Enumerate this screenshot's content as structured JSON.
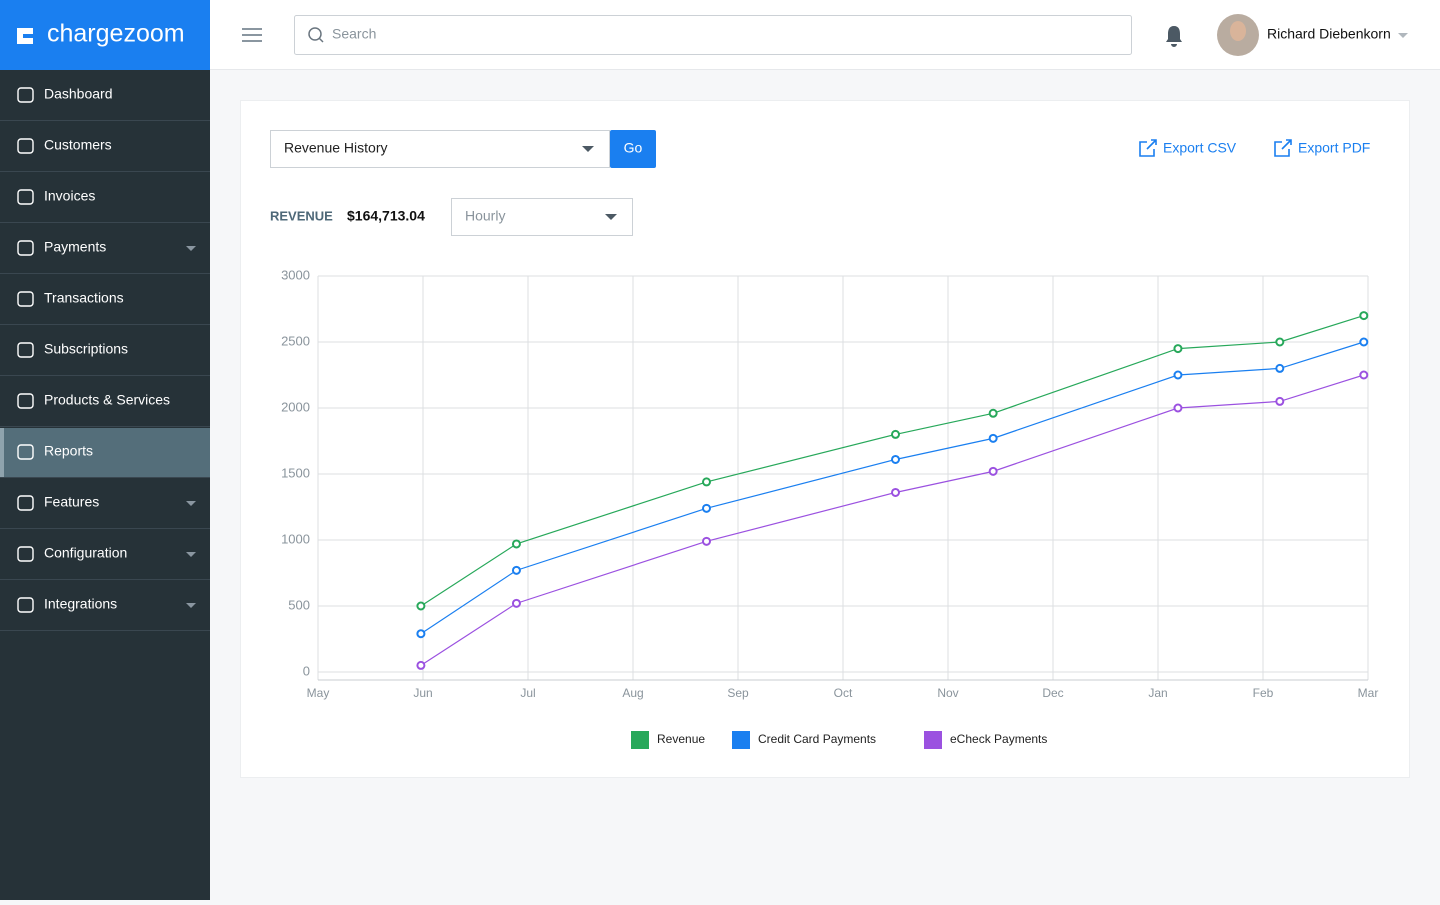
{
  "sidebar": {
    "logo": "chargezoom",
    "menu": [
      "Dashboard",
      "Customers",
      "Invoices",
      "Payments",
      "Transactions",
      "Subscriptions",
      "Products & Services",
      "Reports",
      "Features",
      "Configuration",
      "Integrations"
    ]
  },
  "header": {
    "search_placeholder": "Search",
    "user": "Richard Diebenkorn"
  },
  "report": {
    "selector": "Revenue History",
    "go": "Go",
    "export_csv": "Export CSV",
    "export_pdf": "Export PDF",
    "revenue_label": "REVENUE",
    "revenue_value": "$164,713.04",
    "interval": "Hourly"
  },
  "chart_data": {
    "type": "line",
    "x": [
      0.98,
      1.89,
      3.7,
      5.5,
      6.43,
      8.19,
      9.16,
      9.96
    ],
    "series": [
      {
        "name": "Revenue",
        "color": "#27a85a",
        "values": [
          500,
          970,
          1440,
          1800,
          1960,
          2450,
          2500,
          2700
        ]
      },
      {
        "name": "Credit Card Payments",
        "color": "#1a7ff0",
        "values": [
          290,
          770,
          1240,
          1610,
          1770,
          2250,
          2300,
          2500
        ]
      },
      {
        "name": "eCheck Payments",
        "color": "#9b51e0",
        "values": [
          50,
          520,
          990,
          1360,
          1520,
          2000,
          2050,
          2250
        ]
      }
    ],
    "xlim": [
      0,
      10
    ],
    "xticks": [
      {
        "value": 0,
        "label": "May"
      },
      {
        "value": 1,
        "label": "Jun"
      },
      {
        "value": 2,
        "label": "Jul"
      },
      {
        "value": 3,
        "label": "Aug"
      },
      {
        "value": 4,
        "label": "Sep"
      },
      {
        "value": 5,
        "label": "Oct"
      },
      {
        "value": 6,
        "label": "Nov"
      },
      {
        "value": 7,
        "label": "Dec"
      },
      {
        "value": 8,
        "label": "Jan"
      },
      {
        "value": 9,
        "label": "Feb"
      },
      {
        "value": 10,
        "label": "Mar"
      }
    ],
    "ylim": [
      0,
      3000
    ],
    "yticks": [
      0,
      500,
      1000,
      1500,
      2000,
      2500,
      3000
    ],
    "grid": true,
    "legend": "bottom"
  }
}
